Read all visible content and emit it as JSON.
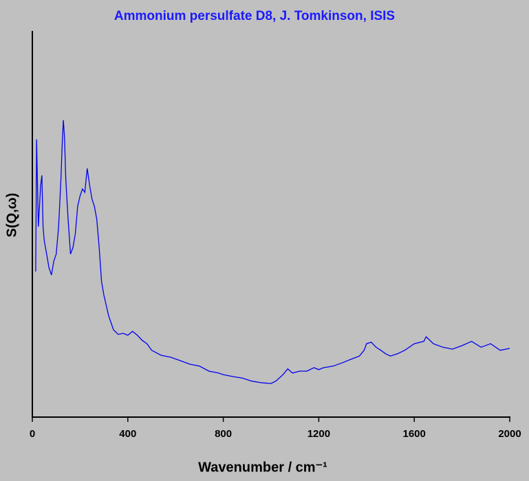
{
  "chart_data": {
    "type": "line",
    "title": "Ammonium persulfate D8, J. Tomkinson, ISIS",
    "x_label": "Wavenumber / cm⁻¹",
    "y_label": "S(Q,ω)",
    "color": "#0000ee",
    "xlim": [
      0,
      2000
    ],
    "xticks": [
      0,
      400,
      800,
      1200,
      1600,
      2000
    ],
    "ylim": [
      0,
      100
    ],
    "series": [
      {
        "name": "S(Q,ω)",
        "color": "#0000ee",
        "x": [
          14,
          18,
          25,
          30,
          35,
          40,
          45,
          50,
          60,
          70,
          80,
          90,
          100,
          110,
          120,
          125,
          130,
          135,
          140,
          150,
          160,
          170,
          180,
          190,
          200,
          210,
          220,
          230,
          240,
          250,
          260,
          270,
          280,
          290,
          300,
          320,
          340,
          360,
          380,
          400,
          420,
          440,
          460,
          480,
          500,
          540,
          580,
          620,
          660,
          700,
          740,
          780,
          800,
          840,
          880,
          920,
          960,
          1000,
          1020,
          1050,
          1070,
          1090,
          1120,
          1150,
          1180,
          1200,
          1220,
          1260,
          1300,
          1340,
          1370,
          1390,
          1400,
          1420,
          1440,
          1460,
          1480,
          1500,
          1530,
          1560,
          1600,
          1640,
          1650,
          1680,
          1720,
          1760,
          1800,
          1840,
          1880,
          1920,
          1960,
          2000
        ],
        "values": [
          37.7,
          71.9,
          49.3,
          54.6,
          60.0,
          62.6,
          49.3,
          45.7,
          42.2,
          38.6,
          36.8,
          40.4,
          42.2,
          49.3,
          61.7,
          70.6,
          76.9,
          72.4,
          61.7,
          51.2,
          42.2,
          43.9,
          47.5,
          54.6,
          57.3,
          59.1,
          58.2,
          64.4,
          60.0,
          56.4,
          54.6,
          51.2,
          43.9,
          35.1,
          31.5,
          26.2,
          22.6,
          21.4,
          21.7,
          21.2,
          22.2,
          21.2,
          19.9,
          19.0,
          17.3,
          16.0,
          15.5,
          14.6,
          13.7,
          13.2,
          11.9,
          11.4,
          11.0,
          10.5,
          10.1,
          9.3,
          8.9,
          8.7,
          9.3,
          11.0,
          12.5,
          11.4,
          11.9,
          11.9,
          12.8,
          12.3,
          12.8,
          13.2,
          14.1,
          15.1,
          15.8,
          17.3,
          19.0,
          19.4,
          18.1,
          17.3,
          16.4,
          15.8,
          16.4,
          17.3,
          19.0,
          19.6,
          20.8,
          19.0,
          18.1,
          17.6,
          18.5,
          19.6,
          18.1,
          19.0,
          17.3,
          17.8
        ]
      }
    ]
  }
}
